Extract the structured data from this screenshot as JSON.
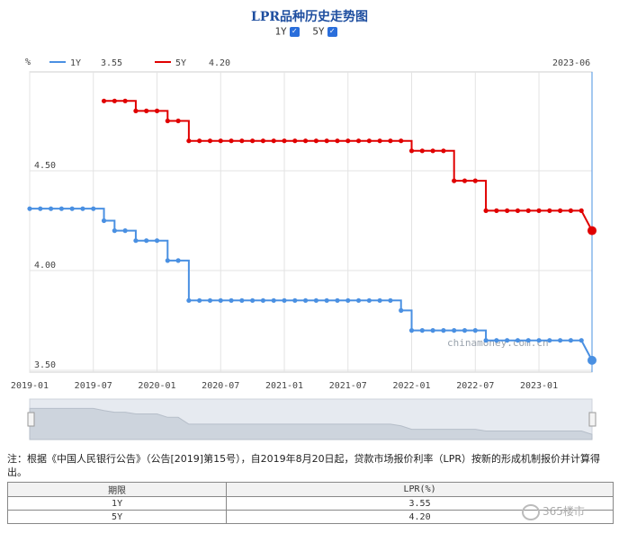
{
  "title": "LPR品种历史走势图",
  "toggles": [
    {
      "label": "1Y",
      "checked": true
    },
    {
      "label": "5Y",
      "checked": true
    }
  ],
  "chart_data": {
    "type": "line",
    "y_unit": "%",
    "ylim": [
      3.5,
      4.85
    ],
    "y_ticks": [
      "3.50",
      "4.00",
      "4.50"
    ],
    "x_tick_labels": [
      "2019-01",
      "2019-07",
      "2020-01",
      "2020-07",
      "2021-01",
      "2021-07",
      "2022-01",
      "2022-07",
      "2023-01"
    ],
    "legend": [
      {
        "name": "1Y",
        "value": "3.55",
        "color": "#4a90e2"
      },
      {
        "name": "5Y",
        "value": "4.20",
        "color": "#e00000"
      }
    ],
    "legend_date": "2023-06",
    "watermark_text": "chinamoney.com.cn",
    "series": [
      {
        "name": "1Y",
        "color": "#4a90e2",
        "x": [
          "2019-01",
          "2019-02",
          "2019-03",
          "2019-04",
          "2019-05",
          "2019-06",
          "2019-07",
          "2019-08",
          "2019-09",
          "2019-10",
          "2019-11",
          "2019-12",
          "2020-01",
          "2020-02",
          "2020-03",
          "2020-04",
          "2020-05",
          "2020-06",
          "2020-07",
          "2020-08",
          "2020-09",
          "2020-10",
          "2020-11",
          "2020-12",
          "2021-01",
          "2021-02",
          "2021-03",
          "2021-04",
          "2021-05",
          "2021-06",
          "2021-07",
          "2021-08",
          "2021-09",
          "2021-10",
          "2021-11",
          "2021-12",
          "2022-01",
          "2022-02",
          "2022-03",
          "2022-04",
          "2022-05",
          "2022-06",
          "2022-07",
          "2022-08",
          "2022-09",
          "2022-10",
          "2022-11",
          "2022-12",
          "2023-01",
          "2023-02",
          "2023-03",
          "2023-04",
          "2023-05",
          "2023-06"
        ],
        "values": [
          4.31,
          4.31,
          4.31,
          4.31,
          4.31,
          4.31,
          4.31,
          4.25,
          4.2,
          4.2,
          4.15,
          4.15,
          4.15,
          4.05,
          4.05,
          3.85,
          3.85,
          3.85,
          3.85,
          3.85,
          3.85,
          3.85,
          3.85,
          3.85,
          3.85,
          3.85,
          3.85,
          3.85,
          3.85,
          3.85,
          3.85,
          3.85,
          3.85,
          3.85,
          3.85,
          3.8,
          3.7,
          3.7,
          3.7,
          3.7,
          3.7,
          3.7,
          3.7,
          3.65,
          3.65,
          3.65,
          3.65,
          3.65,
          3.65,
          3.65,
          3.65,
          3.65,
          3.65,
          3.55
        ]
      },
      {
        "name": "5Y",
        "color": "#e00000",
        "x": [
          "2019-08",
          "2019-09",
          "2019-10",
          "2019-11",
          "2019-12",
          "2020-01",
          "2020-02",
          "2020-03",
          "2020-04",
          "2020-05",
          "2020-06",
          "2020-07",
          "2020-08",
          "2020-09",
          "2020-10",
          "2020-11",
          "2020-12",
          "2021-01",
          "2021-02",
          "2021-03",
          "2021-04",
          "2021-05",
          "2021-06",
          "2021-07",
          "2021-08",
          "2021-09",
          "2021-10",
          "2021-11",
          "2021-12",
          "2022-01",
          "2022-02",
          "2022-03",
          "2022-04",
          "2022-05",
          "2022-06",
          "2022-07",
          "2022-08",
          "2022-09",
          "2022-10",
          "2022-11",
          "2022-12",
          "2023-01",
          "2023-02",
          "2023-03",
          "2023-04",
          "2023-05",
          "2023-06"
        ],
        "values": [
          4.85,
          4.85,
          4.85,
          4.8,
          4.8,
          4.8,
          4.75,
          4.75,
          4.65,
          4.65,
          4.65,
          4.65,
          4.65,
          4.65,
          4.65,
          4.65,
          4.65,
          4.65,
          4.65,
          4.65,
          4.65,
          4.65,
          4.65,
          4.65,
          4.65,
          4.65,
          4.65,
          4.65,
          4.65,
          4.6,
          4.6,
          4.6,
          4.6,
          4.45,
          4.45,
          4.45,
          4.3,
          4.3,
          4.3,
          4.3,
          4.3,
          4.3,
          4.3,
          4.3,
          4.3,
          4.3,
          4.2
        ]
      }
    ]
  },
  "note": "注：根据《中国人民银行公告》（公告[2019]第15号），自2019年8月20日起，贷款市场报价利率（LPR）按新的形成机制报价并计算得出。",
  "table": {
    "headers": [
      "期限",
      "LPR(%)"
    ],
    "rows": [
      [
        "1Y",
        "3.55"
      ],
      [
        "5Y",
        "4.20"
      ]
    ]
  },
  "watermark": "365楼市"
}
